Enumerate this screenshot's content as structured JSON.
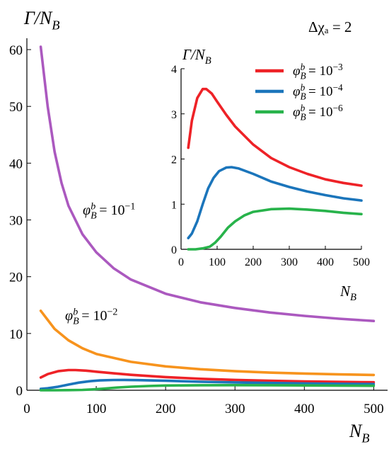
{
  "annotation": "Δχₐ = 2",
  "colors": {
    "purple": "#ab59bf",
    "orange": "#f7931d",
    "red": "#ee2227",
    "blue": "#1b75bb",
    "green": "#28b34b"
  },
  "chart_data": [
    {
      "type": "line",
      "xlabel": "N_B",
      "ylabel": "Γ/N_B",
      "xlim": [
        0,
        520
      ],
      "ylim": [
        0,
        62
      ],
      "xticks": [
        "0",
        "100",
        "200",
        "300",
        "400",
        "500"
      ],
      "yticks": [
        "0",
        "10",
        "20",
        "30",
        "40",
        "50",
        "60"
      ],
      "xtick_values": [
        0,
        100,
        200,
        300,
        400,
        500
      ],
      "ytick_values": [
        0,
        10,
        20,
        30,
        40,
        50,
        60
      ],
      "series": [
        {
          "name": "φ_B^b = 10^−1",
          "color": "#ab59bf",
          "label_text": "φ_B^b = 10^−1",
          "x": [
            20,
            30,
            40,
            50,
            60,
            80,
            100,
            125,
            150,
            200,
            250,
            300,
            350,
            400,
            450,
            500
          ],
          "y": [
            60.5,
            50,
            42,
            36.5,
            32.5,
            27.5,
            24.3,
            21.5,
            19.5,
            17.0,
            15.5,
            14.5,
            13.7,
            13.1,
            12.6,
            12.2
          ]
        },
        {
          "name": "φ_B^b = 10^−2",
          "color": "#f7931d",
          "label_text": "φ_B^b = 10^−2",
          "x": [
            20,
            40,
            60,
            80,
            100,
            150,
            200,
            250,
            300,
            350,
            400,
            450,
            500
          ],
          "y": [
            14.0,
            10.8,
            8.8,
            7.4,
            6.4,
            5.0,
            4.2,
            3.7,
            3.35,
            3.1,
            2.95,
            2.8,
            2.7
          ]
        },
        {
          "name": "φ_B^b = 10^−3",
          "color": "#ee2227",
          "x": [
            20,
            30,
            45,
            60,
            70,
            85,
            100,
            125,
            150,
            200,
            250,
            300,
            350,
            400,
            450,
            500
          ],
          "y": [
            2.25,
            2.85,
            3.35,
            3.55,
            3.55,
            3.45,
            3.27,
            2.98,
            2.72,
            2.32,
            2.02,
            1.82,
            1.67,
            1.55,
            1.47,
            1.41
          ]
        },
        {
          "name": "φ_B^b = 10^−4",
          "color": "#1b75bb",
          "x": [
            20,
            30,
            45,
            60,
            75,
            90,
            105,
            125,
            140,
            160,
            200,
            250,
            300,
            350,
            400,
            450,
            500
          ],
          "y": [
            0.25,
            0.35,
            0.62,
            1.0,
            1.35,
            1.58,
            1.73,
            1.81,
            1.82,
            1.79,
            1.67,
            1.5,
            1.38,
            1.28,
            1.2,
            1.13,
            1.08
          ]
        },
        {
          "name": "φ_B^b = 10^−6",
          "color": "#28b34b",
          "x": [
            20,
            40,
            60,
            80,
            95,
            110,
            130,
            150,
            175,
            200,
            250,
            300,
            350,
            400,
            450,
            500
          ],
          "y": [
            0.0,
            0.0,
            0.02,
            0.06,
            0.15,
            0.28,
            0.48,
            0.62,
            0.75,
            0.83,
            0.89,
            0.9,
            0.88,
            0.85,
            0.81,
            0.78
          ]
        }
      ]
    },
    {
      "type": "line",
      "xlabel": "N_B",
      "ylabel": "Γ/N_B",
      "xlim": [
        0,
        500
      ],
      "ylim": [
        0,
        4
      ],
      "xticks": [
        "0",
        "100",
        "200",
        "300",
        "400",
        "500"
      ],
      "yticks": [
        "0",
        "1",
        "2",
        "3",
        "4"
      ],
      "xtick_values": [
        0,
        100,
        200,
        300,
        400,
        500
      ],
      "ytick_values": [
        0,
        1,
        2,
        3,
        4
      ],
      "legend": {
        "position": "top-right",
        "entries": [
          {
            "label": "φ_B^b = 10^−3",
            "color": "#ee2227"
          },
          {
            "label": "φ_B^b = 10^−4",
            "color": "#1b75bb"
          },
          {
            "label": "φ_B^b = 10^−6",
            "color": "#28b34b"
          }
        ]
      },
      "series": [
        {
          "name": "φ_B^b = 10^−3",
          "color": "#ee2227",
          "x": [
            20,
            30,
            45,
            60,
            70,
            85,
            100,
            125,
            150,
            200,
            250,
            300,
            350,
            400,
            450,
            500
          ],
          "y": [
            2.25,
            2.85,
            3.35,
            3.55,
            3.55,
            3.45,
            3.27,
            2.98,
            2.72,
            2.32,
            2.02,
            1.82,
            1.67,
            1.55,
            1.47,
            1.41
          ]
        },
        {
          "name": "φ_B^b = 10^−4",
          "color": "#1b75bb",
          "x": [
            20,
            30,
            45,
            60,
            75,
            90,
            105,
            125,
            140,
            160,
            200,
            250,
            300,
            350,
            400,
            450,
            500
          ],
          "y": [
            0.25,
            0.35,
            0.62,
            1.0,
            1.35,
            1.58,
            1.73,
            1.81,
            1.82,
            1.79,
            1.67,
            1.5,
            1.38,
            1.28,
            1.2,
            1.13,
            1.08
          ]
        },
        {
          "name": "φ_B^b = 10^−6",
          "color": "#28b34b",
          "x": [
            20,
            40,
            60,
            80,
            95,
            110,
            130,
            150,
            175,
            200,
            250,
            300,
            350,
            400,
            450,
            500
          ],
          "y": [
            0.0,
            0.0,
            0.02,
            0.06,
            0.15,
            0.28,
            0.48,
            0.62,
            0.75,
            0.83,
            0.89,
            0.9,
            0.88,
            0.85,
            0.81,
            0.78
          ]
        }
      ]
    }
  ]
}
